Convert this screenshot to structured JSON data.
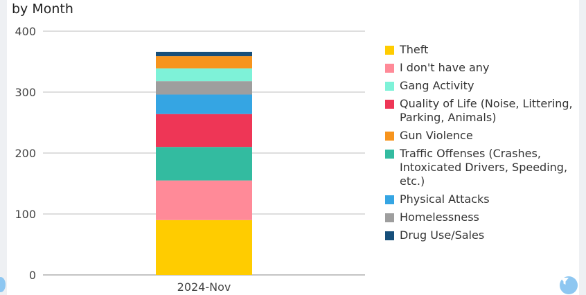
{
  "chart_data": {
    "type": "bar",
    "stacked": true,
    "title": "by Month",
    "categories": [
      "2024-Nov"
    ],
    "ylim": [
      0,
      400
    ],
    "yticks": [
      0,
      100,
      200,
      300,
      400
    ],
    "grid": true,
    "legend_position": "right",
    "series": [
      {
        "name": "Theft",
        "values": [
          90
        ],
        "color": "#ffcc00"
      },
      {
        "name": "I don't have any",
        "values": [
          65
        ],
        "color": "#ff8a98"
      },
      {
        "name": "Traffic Offenses (Crashes, Intoxicated Drivers, Speeding, etc.)",
        "values": [
          55
        ],
        "color": "#33bba0"
      },
      {
        "name": "Quality of Life (Noise, Littering, Parking, Animals)",
        "values": [
          54
        ],
        "color": "#ee3656"
      },
      {
        "name": "Physical Attacks",
        "values": [
          32
        ],
        "color": "#35a5e3"
      },
      {
        "name": "Homelessness",
        "values": [
          22
        ],
        "color": "#9e9e9e"
      },
      {
        "name": "Gang Activity",
        "values": [
          21
        ],
        "color": "#7ef2d8"
      },
      {
        "name": "Gun Violence",
        "values": [
          20
        ],
        "color": "#f7941d"
      },
      {
        "name": "Drug Use/Sales",
        "values": [
          7
        ],
        "color": "#174f7a"
      }
    ],
    "legend_order": [
      "Theft",
      "I don't have any",
      "Gang Activity",
      "Quality of Life (Noise, Littering, Parking, Animals)",
      "Gun Violence",
      "Traffic Offenses (Crashes, Intoxicated Drivers, Speeding, etc.)",
      "Physical Attacks",
      "Homelessness",
      "Drug Use/Sales"
    ]
  },
  "ui": {
    "filter_button_icon": "filter-icon"
  }
}
